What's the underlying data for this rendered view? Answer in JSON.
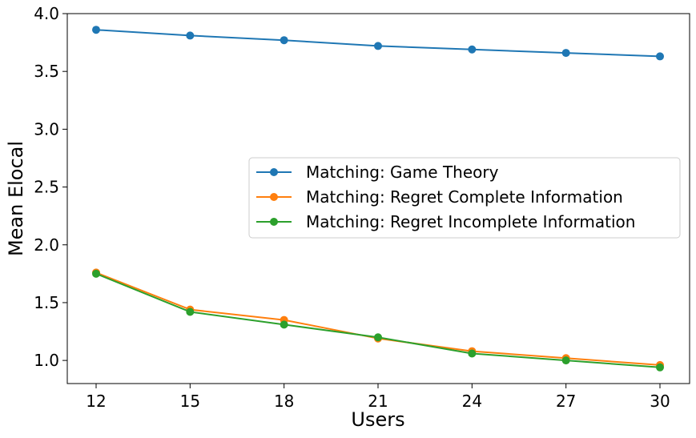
{
  "chart_data": {
    "type": "line",
    "title": "",
    "xlabel": "Users",
    "ylabel": "Mean Elocal",
    "x": [
      12,
      15,
      18,
      21,
      24,
      27,
      30
    ],
    "x_ticks": [
      "12",
      "15",
      "18",
      "21",
      "24",
      "27",
      "30"
    ],
    "y_ticks": [
      "1.0",
      "1.5",
      "2.0",
      "2.5",
      "3.0",
      "3.5",
      "4.0"
    ],
    "ylim": [
      0.8,
      4.0
    ],
    "grid": false,
    "legend_position": "center-right",
    "series": [
      {
        "name": "Matching: Game Theory",
        "color": "#1f77b4",
        "marker": "circle",
        "values": [
          3.86,
          3.81,
          3.77,
          3.72,
          3.69,
          3.66,
          3.63
        ]
      },
      {
        "name": "Matching: Regret Complete Information",
        "color": "#ff7f0e",
        "marker": "circle",
        "values": [
          1.76,
          1.44,
          1.35,
          1.19,
          1.08,
          1.02,
          0.96
        ]
      },
      {
        "name": "Matching: Regret Incomplete Information",
        "color": "#2ca02c",
        "marker": "circle",
        "values": [
          1.75,
          1.42,
          1.31,
          1.2,
          1.06,
          1.0,
          0.94
        ]
      }
    ]
  }
}
